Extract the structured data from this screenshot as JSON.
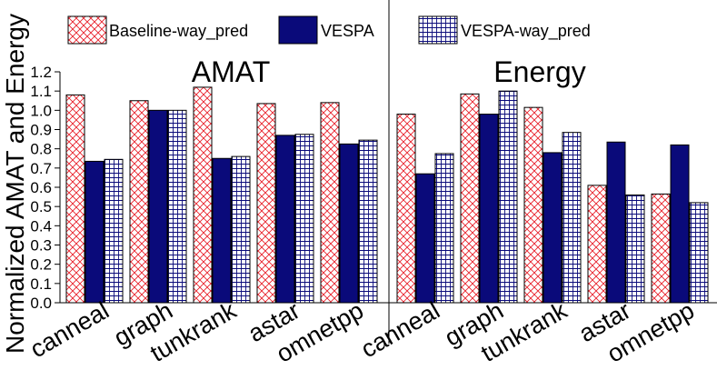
{
  "chart_data": {
    "type": "bar",
    "ylabel": "Normalized AMAT and Energy",
    "ylim": [
      0,
      1.2
    ],
    "yticks": [
      "0.0",
      "0.1",
      "0.2",
      "0.3",
      "0.4",
      "0.5",
      "0.6",
      "0.7",
      "0.8",
      "0.9",
      "1.0",
      "1.1",
      "1.2"
    ],
    "legend": [
      {
        "name": "Baseline-way_pred",
        "pattern": "crosshatch-red"
      },
      {
        "name": "VESPA",
        "pattern": "solid-navy"
      },
      {
        "name": "VESPA-way_pred",
        "pattern": "grid-navy"
      }
    ],
    "panels": [
      {
        "title": "AMAT",
        "categories": [
          "canneal",
          "graph",
          "tunkrank",
          "astar",
          "omnetpp"
        ],
        "series": [
          {
            "name": "Baseline-way_pred",
            "values": [
              1.08,
              1.05,
              1.12,
              1.035,
              1.04
            ]
          },
          {
            "name": "VESPA",
            "values": [
              0.735,
              1.0,
              0.75,
              0.87,
              0.825
            ]
          },
          {
            "name": "VESPA-way_pred",
            "values": [
              0.745,
              1.0,
              0.76,
              0.875,
              0.845
            ]
          }
        ]
      },
      {
        "title": "Energy",
        "categories": [
          "canneal",
          "graph",
          "tunkrank",
          "astar",
          "omnetpp"
        ],
        "series": [
          {
            "name": "Baseline-way_pred",
            "values": [
              0.98,
              1.085,
              1.015,
              0.61,
              0.565
            ]
          },
          {
            "name": "VESPA",
            "values": [
              0.67,
              0.98,
              0.78,
              0.835,
              0.82
            ]
          },
          {
            "name": "VESPA-way_pred",
            "values": [
              0.775,
              1.1,
              0.885,
              0.56,
              0.52
            ]
          }
        ]
      }
    ],
    "colors": {
      "baseline": "#e8202a",
      "vespa": "#0a0a7a",
      "grid": "#0a0a7a"
    }
  }
}
